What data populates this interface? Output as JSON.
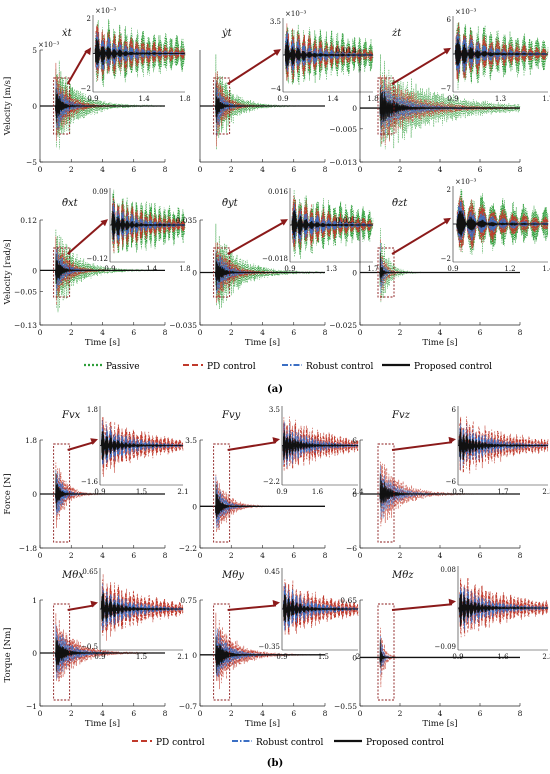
{
  "figure": {
    "panel_a_label": "(a)",
    "panel_b_label": "(b)",
    "colors": {
      "passive": "#2e9e3a",
      "pd": "#c0392b",
      "robust": "#3b6fc4",
      "proposed": "#111111",
      "arrow": "#8b1a1a",
      "box": "#8b1a1a"
    },
    "legend_a": [
      "Passive",
      "PD control",
      "Robust control",
      "Proposed control"
    ],
    "legend_b": [
      "PD control",
      "Robust control",
      "Proposed control"
    ],
    "ylabels": {
      "velocity_ms": "Velocity [m/s]",
      "velocity_rads": "Velocity [rad/s]",
      "force": "Force [N]",
      "torque": "Torque [Nm]"
    },
    "xlabel": "Time [s]"
  },
  "chart_data": [
    {
      "type": "line",
      "panel": "a",
      "title": "ẋt",
      "xlabel": "",
      "ylabel": "Velocity [m/s]",
      "xlim": [
        0,
        8
      ],
      "ylim": [
        -5,
        5
      ],
      "yticks": [
        "5",
        "0",
        "−5"
      ],
      "xticks": [
        "0",
        "2",
        "4",
        "6",
        "8"
      ],
      "scale_label": "×10⁻³",
      "peak": [
        -5,
        5
      ],
      "decay": 1.2,
      "series": [
        "passive",
        "pd",
        "robust",
        "proposed"
      ],
      "inset": {
        "xlim": [
          0.9,
          1.8
        ],
        "xticks": [
          "0.9",
          "1.4",
          "1.8"
        ],
        "yticks": [
          "2",
          "−2"
        ],
        "scale_label": "×10⁻³",
        "lo": "−2",
        "hi": "2"
      }
    },
    {
      "type": "line",
      "panel": "a",
      "title": "ẏt",
      "xlabel": "",
      "ylabel": "",
      "xlim": [
        0,
        8
      ],
      "ylim": [
        -5,
        5
      ],
      "yticks": [],
      "xticks": [
        "0",
        "2",
        "4",
        "6",
        "8"
      ],
      "scale_label": "",
      "peak": [
        -5,
        5
      ],
      "decay": 1.6,
      "series": [
        "passive",
        "pd",
        "robust",
        "proposed"
      ],
      "inset": {
        "xlim": [
          0.9,
          1.8
        ],
        "xticks": [
          "0.9",
          "1.4",
          "1.8"
        ],
        "yticks": [
          "3.5",
          "−4"
        ],
        "scale_label": "×10⁻³",
        "lo": "−4",
        "hi": "3.5"
      }
    },
    {
      "type": "line",
      "panel": "a",
      "title": "żt",
      "xlabel": "",
      "ylabel": "",
      "xlim": [
        0,
        8
      ],
      "ylim": [
        -0.013,
        0.014
      ],
      "yticks": [
        "0.014",
        "0",
        "−0.005",
        "−0.013"
      ],
      "xticks": [
        "0",
        "2",
        "4",
        "6",
        "8"
      ],
      "scale_label": "",
      "peak": [
        -0.013,
        0.014
      ],
      "decay": 0.6,
      "series": [
        "passive",
        "pd",
        "robust",
        "proposed"
      ],
      "inset": {
        "xlim": [
          0.9,
          1.7
        ],
        "xticks": [
          "0.9",
          "1.3",
          "1.7"
        ],
        "yticks": [
          "6",
          "−7"
        ],
        "scale_label": "×10⁻³",
        "lo": "−7",
        "hi": "6"
      }
    },
    {
      "type": "line",
      "panel": "a",
      "title": "θ̇xt",
      "xlabel": "Time [s]",
      "ylabel": "Velocity [rad/s]",
      "xlim": [
        0,
        8
      ],
      "ylim": [
        -0.13,
        0.12
      ],
      "yticks": [
        "0.12",
        "0",
        "−0.05",
        "−0.13"
      ],
      "xticks": [
        "0",
        "2",
        "4",
        "6",
        "8"
      ],
      "scale_label": "",
      "peak": [
        -0.13,
        0.12
      ],
      "decay": 1.3,
      "series": [
        "passive",
        "pd",
        "robust",
        "proposed"
      ],
      "inset": {
        "xlim": [
          0.9,
          1.8
        ],
        "xticks": [
          "0.9",
          "1.4",
          "1.8"
        ],
        "yticks": [
          "0.09",
          "−0.12"
        ],
        "scale_label": "",
        "lo": "−0.12",
        "hi": "0.09"
      }
    },
    {
      "type": "line",
      "panel": "a",
      "title": "θ̇yt",
      "xlabel": "Time [s]",
      "ylabel": "",
      "xlim": [
        0,
        8
      ],
      "ylim": [
        -0.035,
        0.035
      ],
      "yticks": [
        "0.035",
        "0",
        "−0.035"
      ],
      "xticks": [
        "0",
        "2",
        "4",
        "6",
        "8"
      ],
      "scale_label": "",
      "peak": [
        -0.035,
        0.035
      ],
      "decay": 1.1,
      "series": [
        "passive",
        "pd",
        "robust",
        "proposed"
      ],
      "inset": {
        "xlim": [
          0.9,
          1.7
        ],
        "xticks": [
          "0.9",
          "1.3",
          "1.7"
        ],
        "yticks": [
          "0.016",
          "−0.018"
        ],
        "scale_label": "",
        "lo": "−0.018",
        "hi": "0.016"
      }
    },
    {
      "type": "line",
      "panel": "a",
      "title": "θ̇zt",
      "xlabel": "Time [s]",
      "ylabel": "",
      "xlim": [
        0,
        8
      ],
      "ylim": [
        -0.025,
        0.025
      ],
      "yticks": [
        "0.025",
        "0",
        "−0.025"
      ],
      "xticks": [
        "0",
        "2",
        "4",
        "6",
        "8"
      ],
      "scale_label": "",
      "peak": [
        -0.025,
        0.025
      ],
      "decay": 4.0,
      "series": [
        "passive",
        "pd",
        "robust",
        "proposed"
      ],
      "inset": {
        "xlim": [
          0.9,
          1.4
        ],
        "xticks": [
          "0.9",
          "1.2",
          "1.4"
        ],
        "yticks": [
          "2",
          "−2"
        ],
        "scale_label": "×10⁻³",
        "lo": "−2",
        "hi": "2"
      }
    },
    {
      "type": "line",
      "panel": "b",
      "title": "Fvx",
      "xlabel": "",
      "ylabel": "Force [N]",
      "xlim": [
        0,
        8
      ],
      "ylim": [
        -1.8,
        1.8
      ],
      "yticks": [
        "1.8",
        "0",
        "−1.8"
      ],
      "xticks": [
        "0",
        "2",
        "4",
        "6",
        "8"
      ],
      "scale_label": "",
      "peak": [
        -1.8,
        1.8
      ],
      "decay": 1.6,
      "series": [
        "pd",
        "robust",
        "proposed"
      ],
      "inset": {
        "xlim": [
          0.9,
          2.1
        ],
        "xticks": [
          "0.9",
          "1.5",
          "2.1"
        ],
        "yticks": [
          "1.8",
          "−1.6"
        ],
        "scale_label": "",
        "lo": "−1.6",
        "hi": "1.8"
      }
    },
    {
      "type": "line",
      "panel": "b",
      "title": "Fvy",
      "xlabel": "",
      "ylabel": "",
      "xlim": [
        0,
        8
      ],
      "ylim": [
        -2.2,
        3.5
      ],
      "yticks": [
        "3.5",
        "0",
        "−2.2"
      ],
      "xticks": [
        "0",
        "2",
        "4",
        "6",
        "8"
      ],
      "scale_label": "",
      "peak": [
        -2.2,
        3.5
      ],
      "decay": 1.4,
      "series": [
        "pd",
        "robust",
        "proposed"
      ],
      "inset": {
        "xlim": [
          0.9,
          2.4
        ],
        "xticks": [
          "0.9",
          "1.6",
          "2.4"
        ],
        "yticks": [
          "3.5",
          "−2.2"
        ],
        "scale_label": "",
        "lo": "−2.2",
        "hi": "3.5"
      }
    },
    {
      "type": "line",
      "panel": "b",
      "title": "Fvz",
      "xlabel": "",
      "ylabel": "",
      "xlim": [
        0,
        8
      ],
      "ylim": [
        -6,
        6
      ],
      "yticks": [
        "6",
        "0",
        "−6"
      ],
      "xticks": [
        "0",
        "2",
        "4",
        "6",
        "8"
      ],
      "scale_label": "",
      "peak": [
        -6,
        6
      ],
      "decay": 1.0,
      "series": [
        "pd",
        "robust",
        "proposed"
      ],
      "inset": {
        "xlim": [
          0.9,
          2.5
        ],
        "xticks": [
          "0.9",
          "1.7",
          "2.5"
        ],
        "yticks": [
          "6",
          "−6"
        ],
        "scale_label": "",
        "lo": "−6",
        "hi": "6"
      }
    },
    {
      "type": "line",
      "panel": "b",
      "title": "Mθx",
      "xlabel": "Time [s]",
      "ylabel": "Torque [Nm]",
      "xlim": [
        0,
        8
      ],
      "ylim": [
        -1,
        1
      ],
      "yticks": [
        "1",
        "0",
        "−1"
      ],
      "xticks": [
        "0",
        "2",
        "4",
        "6",
        "8"
      ],
      "scale_label": "",
      "peak": [
        -1,
        1
      ],
      "decay": 0.8,
      "series": [
        "pd",
        "robust",
        "proposed"
      ],
      "inset": {
        "xlim": [
          0.9,
          2.1
        ],
        "xticks": [
          "0.9",
          "1.5",
          "2.1"
        ],
        "yticks": [
          "0.65",
          "−0.5"
        ],
        "scale_label": "",
        "lo": "−0.5",
        "hi": "0.65"
      }
    },
    {
      "type": "line",
      "panel": "b",
      "title": "Mθy",
      "xlabel": "Time [s]",
      "ylabel": "",
      "xlim": [
        0,
        8
      ],
      "ylim": [
        -0.7,
        0.75
      ],
      "yticks": [
        "0.75",
        "0",
        "−0.7"
      ],
      "xticks": [
        "0",
        "2",
        "4",
        "6",
        "8"
      ],
      "scale_label": "",
      "peak": [
        -0.7,
        0.75
      ],
      "decay": 0.8,
      "series": [
        "pd",
        "robust",
        "proposed"
      ],
      "inset": {
        "xlim": [
          0.9,
          2
        ],
        "xticks": [
          "0.9",
          "1.5",
          "2"
        ],
        "yticks": [
          "0.45",
          "−0.35"
        ],
        "scale_label": "",
        "lo": "−0.35",
        "hi": "0.45"
      }
    },
    {
      "type": "line",
      "panel": "b",
      "title": "Mθz",
      "xlabel": "Time [s]",
      "ylabel": "",
      "xlim": [
        0,
        8
      ],
      "ylim": [
        -0.55,
        0.65
      ],
      "yticks": [
        "0.65",
        "0",
        "−0.55"
      ],
      "xticks": [
        "0",
        "2",
        "4",
        "6",
        "8"
      ],
      "scale_label": "",
      "peak": [
        -0.55,
        0.65
      ],
      "decay": 5.0,
      "series": [
        "pd",
        "robust",
        "proposed"
      ],
      "inset": {
        "xlim": [
          0.9,
          2.3
        ],
        "xticks": [
          "0.9",
          "1.6",
          "2.3"
        ],
        "yticks": [
          "0.08",
          "−0.09"
        ],
        "scale_label": "",
        "lo": "−0.09",
        "hi": "0.08"
      }
    }
  ]
}
